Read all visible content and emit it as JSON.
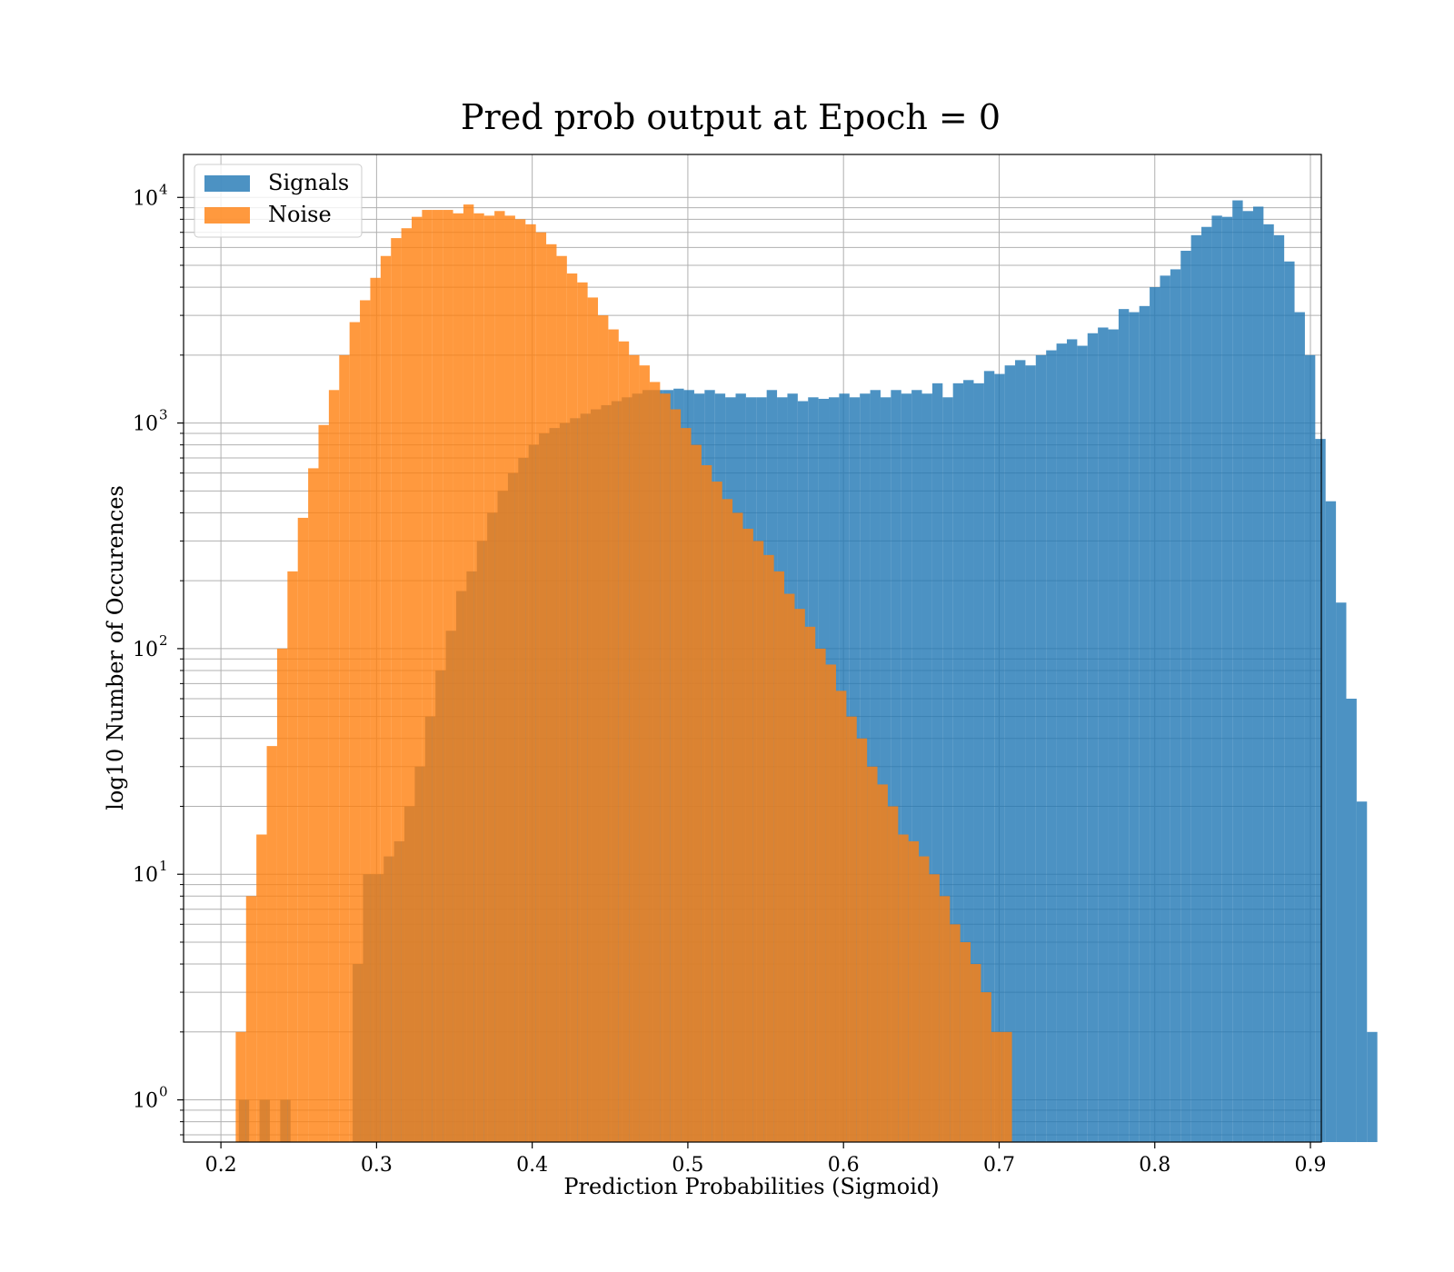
{
  "chart_data": {
    "type": "bar",
    "title": "Pred prob output at Epoch = 0",
    "xlabel": "Prediction Probabilities (Sigmoid)",
    "ylabel": "log10 Number of Occurences",
    "xlim": [
      0.176,
      0.907
    ],
    "ylim": [
      0.65,
      15500
    ],
    "yscale": "log",
    "grid": true,
    "legend_position": "top-left",
    "x_ticks": [
      "0.2",
      "0.3",
      "0.4",
      "0.5",
      "0.6",
      "0.7",
      "0.8",
      "0.9"
    ],
    "y_ticks": [
      {
        "base": "10",
        "exp": "0"
      },
      {
        "base": "10",
        "exp": "1"
      },
      {
        "base": "10",
        "exp": "2"
      },
      {
        "base": "10",
        "exp": "3"
      },
      {
        "base": "10",
        "exp": "4"
      }
    ],
    "bin_width": 0.00665,
    "series": [
      {
        "name": "Signals",
        "color": "#1f77b4",
        "opacity": 0.8,
        "x_start": 0.2115,
        "values": [
          1,
          0,
          1,
          0,
          1,
          0,
          0,
          0,
          0,
          0,
          0,
          4,
          10,
          10,
          12,
          14,
          20,
          30,
          50,
          80,
          120,
          180,
          220,
          300,
          400,
          500,
          600,
          700,
          800,
          900,
          950,
          1000,
          1050,
          1100,
          1150,
          1200,
          1250,
          1300,
          1350,
          1400,
          1400,
          1400,
          1420,
          1400,
          1350,
          1400,
          1350,
          1300,
          1350,
          1300,
          1300,
          1400,
          1300,
          1350,
          1250,
          1300,
          1280,
          1300,
          1350,
          1300,
          1350,
          1400,
          1300,
          1400,
          1350,
          1400,
          1350,
          1500,
          1300,
          1500,
          1550,
          1500,
          1700,
          1650,
          1800,
          1900,
          1800,
          2000,
          2100,
          2250,
          2350,
          2200,
          2500,
          2650,
          2600,
          3200,
          3100,
          3300,
          4000,
          4500,
          4800,
          5800,
          6800,
          7400,
          8300,
          8200,
          9700,
          8700,
          9100,
          7600,
          6800,
          5200,
          3100,
          2000,
          850,
          450,
          160,
          60,
          21,
          2
        ]
      },
      {
        "name": "Noise",
        "color": "#ff7f0e",
        "opacity": 0.8,
        "x_start": 0.2095,
        "values": [
          2,
          8,
          15,
          37,
          100,
          220,
          380,
          630,
          980,
          1400,
          2000,
          2800,
          3500,
          4400,
          5500,
          6600,
          7300,
          8200,
          8800,
          8800,
          8800,
          8500,
          9300,
          8500,
          8300,
          8700,
          8300,
          8000,
          7600,
          7000,
          6200,
          5500,
          4600,
          4200,
          3600,
          3000,
          2600,
          2300,
          2000,
          1800,
          1520,
          1350,
          1150,
          950,
          800,
          650,
          550,
          460,
          400,
          340,
          300,
          260,
          220,
          175,
          150,
          125,
          100,
          85,
          65,
          50,
          40,
          30,
          25,
          20,
          15,
          14,
          12,
          10,
          8,
          6,
          5,
          4,
          3,
          2,
          2
        ]
      }
    ]
  }
}
